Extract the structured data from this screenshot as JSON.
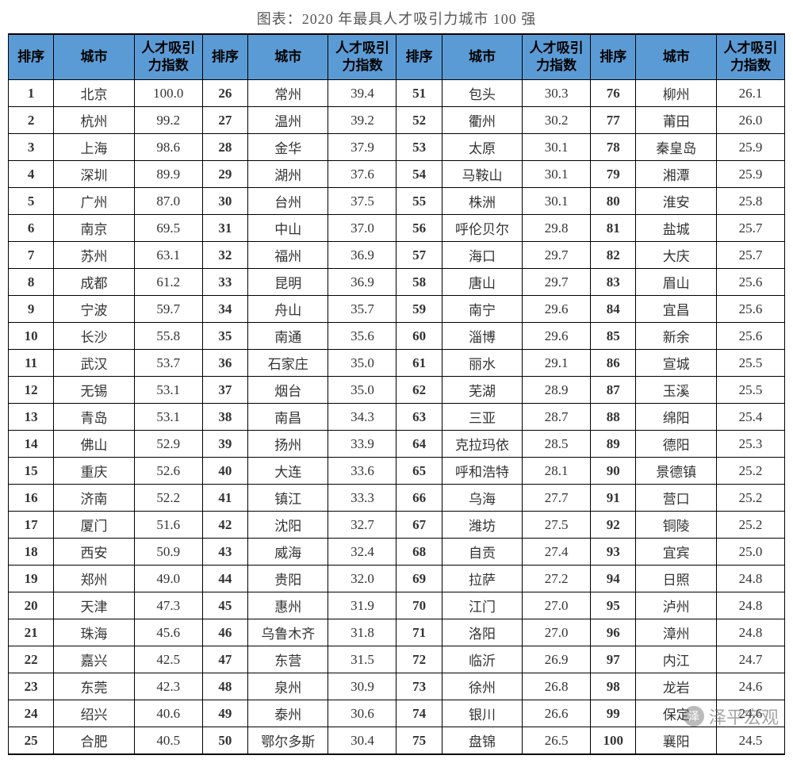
{
  "title": "图表：2020 年最具人才吸引力城市 100 强",
  "headers": {
    "rank": "排序",
    "city": "城市",
    "index": "人才吸引力指数"
  },
  "styling": {
    "header_bg": "#5b9bd5",
    "border_color": "#000000",
    "outer_border_width": 2.5,
    "font_family": "SimSun",
    "title_fontsize": 18,
    "cell_fontsize": 17,
    "background": "#ffffff",
    "columns_per_group": 3,
    "groups": 4,
    "rows": 25
  },
  "watermark": {
    "icon": "泽",
    "text": "泽平宏观"
  },
  "data": [
    {
      "rank": 1,
      "city": "北京",
      "index": "100.0"
    },
    {
      "rank": 2,
      "city": "杭州",
      "index": "99.2"
    },
    {
      "rank": 3,
      "city": "上海",
      "index": "98.6"
    },
    {
      "rank": 4,
      "city": "深圳",
      "index": "89.9"
    },
    {
      "rank": 5,
      "city": "广州",
      "index": "87.0"
    },
    {
      "rank": 6,
      "city": "南京",
      "index": "69.5"
    },
    {
      "rank": 7,
      "city": "苏州",
      "index": "63.1"
    },
    {
      "rank": 8,
      "city": "成都",
      "index": "61.2"
    },
    {
      "rank": 9,
      "city": "宁波",
      "index": "59.7"
    },
    {
      "rank": 10,
      "city": "长沙",
      "index": "55.8"
    },
    {
      "rank": 11,
      "city": "武汉",
      "index": "53.7"
    },
    {
      "rank": 12,
      "city": "无锡",
      "index": "53.1"
    },
    {
      "rank": 13,
      "city": "青岛",
      "index": "53.1"
    },
    {
      "rank": 14,
      "city": "佛山",
      "index": "52.9"
    },
    {
      "rank": 15,
      "city": "重庆",
      "index": "52.6"
    },
    {
      "rank": 16,
      "city": "济南",
      "index": "52.2"
    },
    {
      "rank": 17,
      "city": "厦门",
      "index": "51.6"
    },
    {
      "rank": 18,
      "city": "西安",
      "index": "50.9"
    },
    {
      "rank": 19,
      "city": "郑州",
      "index": "49.0"
    },
    {
      "rank": 20,
      "city": "天津",
      "index": "47.3"
    },
    {
      "rank": 21,
      "city": "珠海",
      "index": "45.6"
    },
    {
      "rank": 22,
      "city": "嘉兴",
      "index": "42.5"
    },
    {
      "rank": 23,
      "city": "东莞",
      "index": "42.3"
    },
    {
      "rank": 24,
      "city": "绍兴",
      "index": "40.6"
    },
    {
      "rank": 25,
      "city": "合肥",
      "index": "40.5"
    },
    {
      "rank": 26,
      "city": "常州",
      "index": "39.4"
    },
    {
      "rank": 27,
      "city": "温州",
      "index": "39.2"
    },
    {
      "rank": 28,
      "city": "金华",
      "index": "37.9"
    },
    {
      "rank": 29,
      "city": "湖州",
      "index": "37.6"
    },
    {
      "rank": 30,
      "city": "台州",
      "index": "37.5"
    },
    {
      "rank": 31,
      "city": "中山",
      "index": "37.0"
    },
    {
      "rank": 32,
      "city": "福州",
      "index": "36.9"
    },
    {
      "rank": 33,
      "city": "昆明",
      "index": "36.9"
    },
    {
      "rank": 34,
      "city": "舟山",
      "index": "35.7"
    },
    {
      "rank": 35,
      "city": "南通",
      "index": "35.6"
    },
    {
      "rank": 36,
      "city": "石家庄",
      "index": "35.0"
    },
    {
      "rank": 37,
      "city": "烟台",
      "index": "35.0"
    },
    {
      "rank": 38,
      "city": "南昌",
      "index": "34.3"
    },
    {
      "rank": 39,
      "city": "扬州",
      "index": "33.9"
    },
    {
      "rank": 40,
      "city": "大连",
      "index": "33.6"
    },
    {
      "rank": 41,
      "city": "镇江",
      "index": "33.3"
    },
    {
      "rank": 42,
      "city": "沈阳",
      "index": "32.7"
    },
    {
      "rank": 43,
      "city": "威海",
      "index": "32.4"
    },
    {
      "rank": 44,
      "city": "贵阳",
      "index": "32.0"
    },
    {
      "rank": 45,
      "city": "惠州",
      "index": "31.9"
    },
    {
      "rank": 46,
      "city": "乌鲁木齐",
      "index": "31.8"
    },
    {
      "rank": 47,
      "city": "东营",
      "index": "31.5"
    },
    {
      "rank": 48,
      "city": "泉州",
      "index": "30.9"
    },
    {
      "rank": 49,
      "city": "泰州",
      "index": "30.6"
    },
    {
      "rank": 50,
      "city": "鄂尔多斯",
      "index": "30.4"
    },
    {
      "rank": 51,
      "city": "包头",
      "index": "30.3"
    },
    {
      "rank": 52,
      "city": "衢州",
      "index": "30.2"
    },
    {
      "rank": 53,
      "city": "太原",
      "index": "30.1"
    },
    {
      "rank": 54,
      "city": "马鞍山",
      "index": "30.1"
    },
    {
      "rank": 55,
      "city": "株洲",
      "index": "30.1"
    },
    {
      "rank": 56,
      "city": "呼伦贝尔",
      "index": "29.8"
    },
    {
      "rank": 57,
      "city": "海口",
      "index": "29.7"
    },
    {
      "rank": 58,
      "city": "唐山",
      "index": "29.7"
    },
    {
      "rank": 59,
      "city": "南宁",
      "index": "29.6"
    },
    {
      "rank": 60,
      "city": "淄博",
      "index": "29.6"
    },
    {
      "rank": 61,
      "city": "丽水",
      "index": "29.1"
    },
    {
      "rank": 62,
      "city": "芜湖",
      "index": "28.9"
    },
    {
      "rank": 63,
      "city": "三亚",
      "index": "28.7"
    },
    {
      "rank": 64,
      "city": "克拉玛依",
      "index": "28.5"
    },
    {
      "rank": 65,
      "city": "呼和浩特",
      "index": "28.1"
    },
    {
      "rank": 66,
      "city": "乌海",
      "index": "27.7"
    },
    {
      "rank": 67,
      "city": "潍坊",
      "index": "27.5"
    },
    {
      "rank": 68,
      "city": "自贡",
      "index": "27.4"
    },
    {
      "rank": 69,
      "city": "拉萨",
      "index": "27.2"
    },
    {
      "rank": 70,
      "city": "江门",
      "index": "27.0"
    },
    {
      "rank": 71,
      "city": "洛阳",
      "index": "27.0"
    },
    {
      "rank": 72,
      "city": "临沂",
      "index": "26.9"
    },
    {
      "rank": 73,
      "city": "徐州",
      "index": "26.8"
    },
    {
      "rank": 74,
      "city": "银川",
      "index": "26.6"
    },
    {
      "rank": 75,
      "city": "盘锦",
      "index": "26.5"
    },
    {
      "rank": 76,
      "city": "柳州",
      "index": "26.1"
    },
    {
      "rank": 77,
      "city": "莆田",
      "index": "26.0"
    },
    {
      "rank": 78,
      "city": "秦皇岛",
      "index": "25.9"
    },
    {
      "rank": 79,
      "city": "湘潭",
      "index": "25.9"
    },
    {
      "rank": 80,
      "city": "淮安",
      "index": "25.8"
    },
    {
      "rank": 81,
      "city": "盐城",
      "index": "25.7"
    },
    {
      "rank": 82,
      "city": "大庆",
      "index": "25.7"
    },
    {
      "rank": 83,
      "city": "眉山",
      "index": "25.6"
    },
    {
      "rank": 84,
      "city": "宜昌",
      "index": "25.6"
    },
    {
      "rank": 85,
      "city": "新余",
      "index": "25.6"
    },
    {
      "rank": 86,
      "city": "宣城",
      "index": "25.5"
    },
    {
      "rank": 87,
      "city": "玉溪",
      "index": "25.5"
    },
    {
      "rank": 88,
      "city": "绵阳",
      "index": "25.4"
    },
    {
      "rank": 89,
      "city": "德阳",
      "index": "25.3"
    },
    {
      "rank": 90,
      "city": "景德镇",
      "index": "25.2"
    },
    {
      "rank": 91,
      "city": "营口",
      "index": "25.2"
    },
    {
      "rank": 92,
      "city": "铜陵",
      "index": "25.2"
    },
    {
      "rank": 93,
      "city": "宜宾",
      "index": "25.0"
    },
    {
      "rank": 94,
      "city": "日照",
      "index": "24.8"
    },
    {
      "rank": 95,
      "city": "泸州",
      "index": "24.8"
    },
    {
      "rank": 96,
      "city": "漳州",
      "index": "24.8"
    },
    {
      "rank": 97,
      "city": "内江",
      "index": "24.7"
    },
    {
      "rank": 98,
      "city": "龙岩",
      "index": "24.6"
    },
    {
      "rank": 99,
      "city": "保定",
      "index": "24.6"
    },
    {
      "rank": 100,
      "city": "襄阳",
      "index": "24.5"
    }
  ]
}
